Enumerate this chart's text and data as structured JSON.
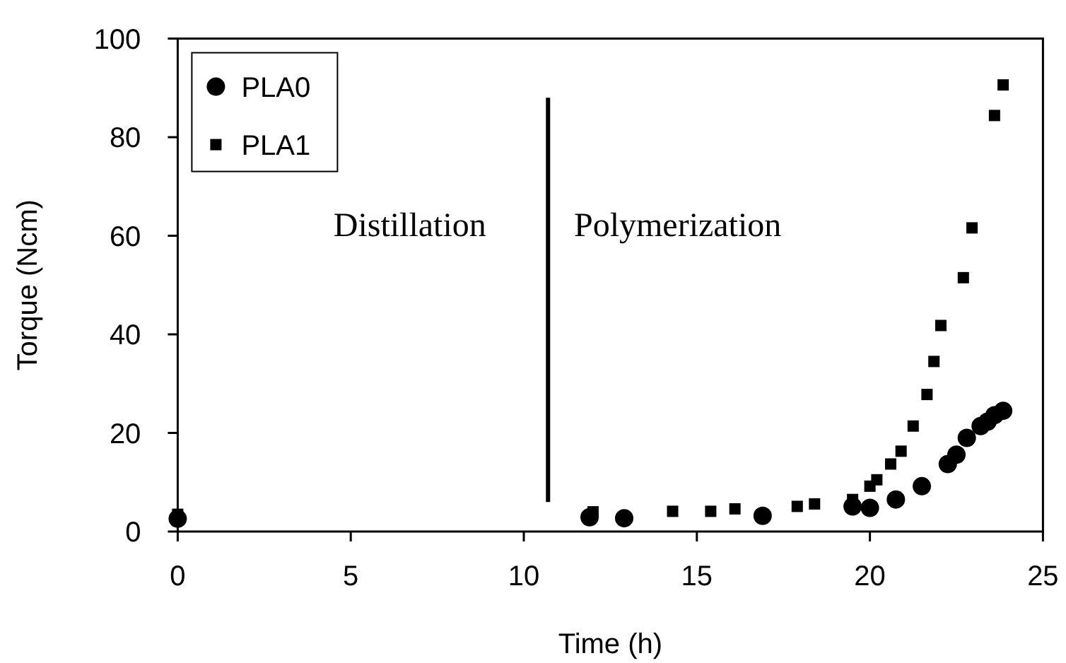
{
  "chart_data": {
    "type": "scatter",
    "xlabel": "Time (h)",
    "ylabel": "Torque (Ncm)",
    "xlim": [
      0,
      25
    ],
    "ylim": [
      0,
      100
    ],
    "xticks": [
      0,
      5,
      10,
      15,
      20,
      25
    ],
    "yticks": [
      0,
      20,
      40,
      60,
      80,
      100
    ],
    "grid": false,
    "legend": "top left",
    "annotations": [
      "Distillation",
      "Polymerization"
    ],
    "ref_lines": [
      {
        "axis": "x",
        "value": 10.7,
        "color": "#000000"
      }
    ],
    "series": [
      {
        "name": "PLA0",
        "color": "#000000",
        "marker": "circle",
        "x": [
          0,
          11.9,
          12.9,
          16.9,
          19.5,
          20.0,
          20.75,
          21.5,
          22.25,
          22.5,
          22.8,
          23.2,
          23.4,
          23.6,
          23.85
        ],
        "values": [
          2.6,
          2.9,
          2.7,
          3.2,
          5.1,
          4.8,
          6.5,
          9.2,
          13.7,
          15.6,
          19,
          21.4,
          22.3,
          23.6,
          24.5
        ]
      },
      {
        "name": "PLA1",
        "color": "#000000",
        "marker": "square",
        "x": [
          0,
          12,
          14.3,
          15.4,
          16.1,
          17.9,
          18.4,
          19.5,
          20.0,
          20.2,
          20.6,
          20.9,
          21.25,
          21.65,
          21.85,
          22.05,
          22.7,
          22.95,
          23.6,
          23.85
        ],
        "values": [
          3.5,
          4,
          4.1,
          4.1,
          4.6,
          5.1,
          5.6,
          6.5,
          9.2,
          10.5,
          13.7,
          16.3,
          21.4,
          27.8,
          34.5,
          41.8,
          51.5,
          61.6,
          84.4,
          90.6
        ]
      }
    ]
  }
}
